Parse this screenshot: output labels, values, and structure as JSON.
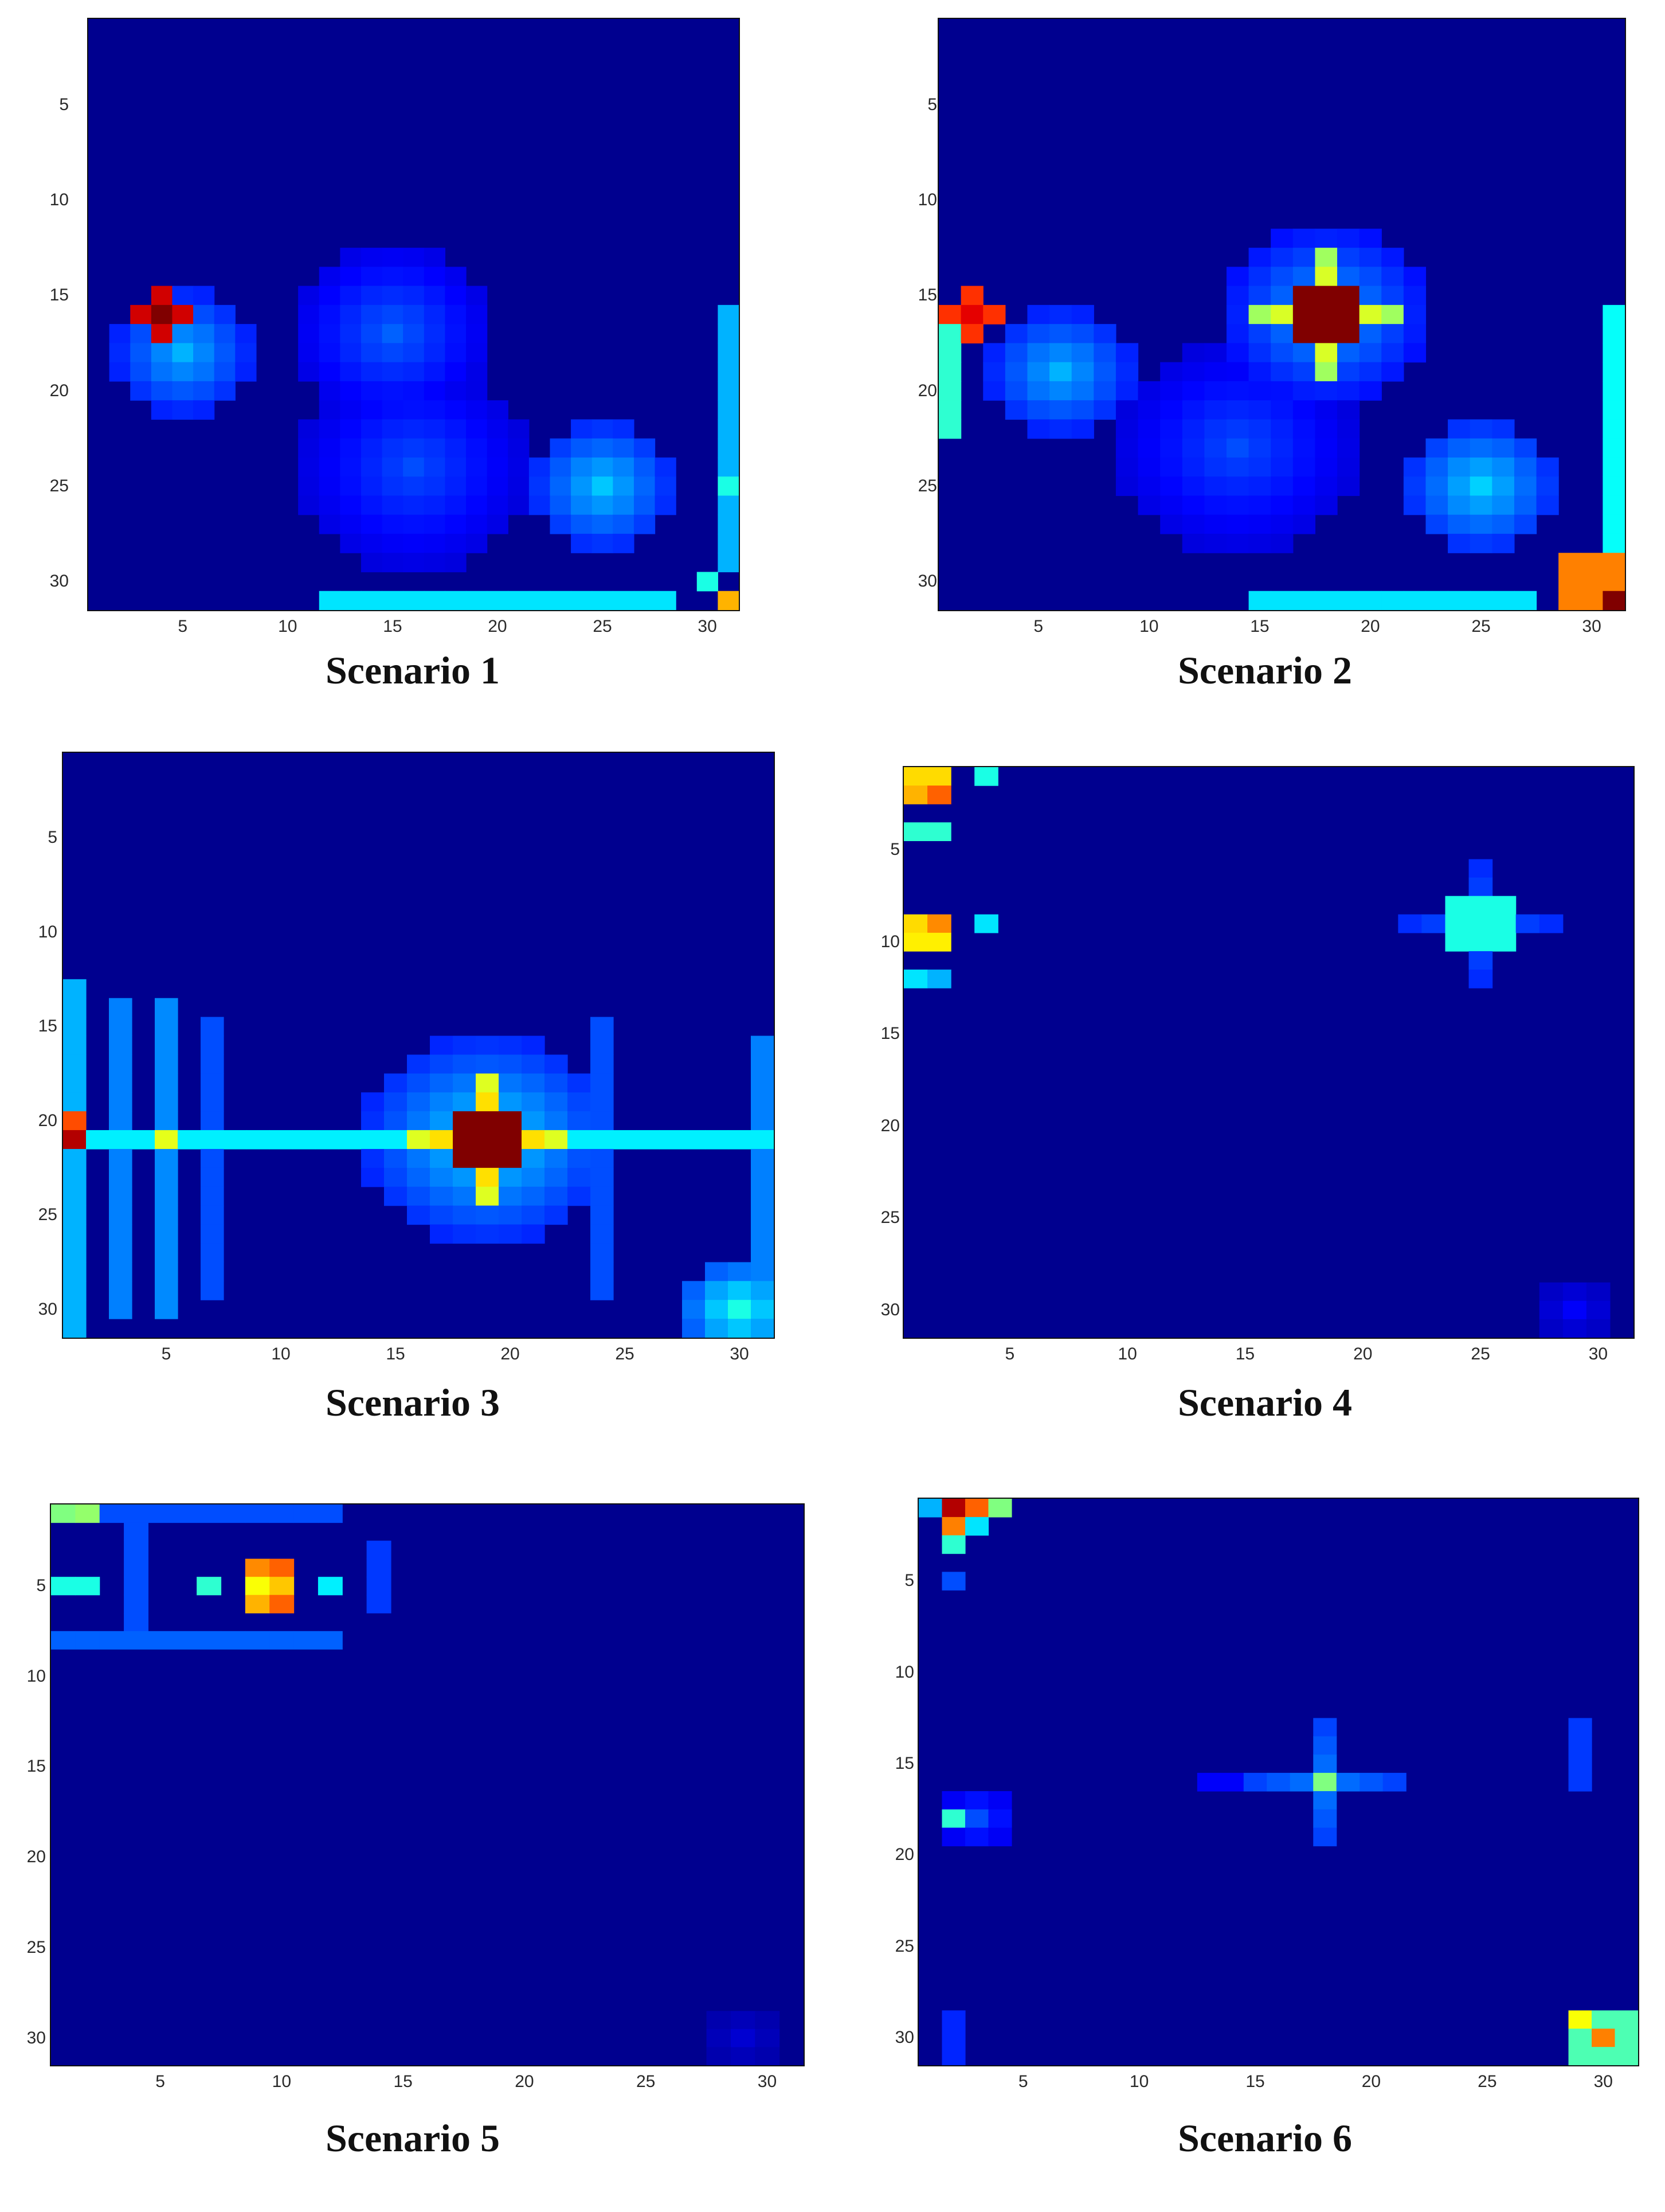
{
  "chart_data": [
    {
      "type": "heatmap",
      "title": "Scenario 1",
      "grid_size": 31,
      "xticks": [
        5,
        10,
        15,
        20,
        25,
        30
      ],
      "yticks": [
        5,
        10,
        15,
        20,
        25,
        30
      ],
      "colormap": "jet",
      "background_value": 0.02,
      "features": [
        {
          "type": "cross",
          "x": 4,
          "y": 16,
          "value": 1.0
        },
        {
          "type": "blob",
          "x": 5,
          "y": 18,
          "radius": 3,
          "value": 0.3
        },
        {
          "type": "blob",
          "x": 15,
          "y": 17,
          "radius": 4,
          "value": 0.22
        },
        {
          "type": "blob",
          "x": 25,
          "y": 25,
          "radius": 3,
          "value": 0.32
        },
        {
          "type": "blob",
          "x": 16,
          "y": 24,
          "radius": 5,
          "value": 0.2
        },
        {
          "type": "row_band",
          "y": 31,
          "x_from": 12,
          "x_to": 28,
          "value": 0.35
        },
        {
          "type": "cell",
          "x": 31,
          "y": 31,
          "value": 0.7
        },
        {
          "type": "cell",
          "x": 31,
          "y": 25,
          "value": 0.4
        },
        {
          "type": "cell",
          "x": 30,
          "y": 30,
          "value": 0.4
        },
        {
          "type": "col_band",
          "x": 31,
          "y_from": 16,
          "y_to": 29,
          "value": 0.3
        }
      ]
    },
    {
      "type": "heatmap",
      "title": "Scenario 2",
      "grid_size": 31,
      "xticks": [
        5,
        10,
        15,
        20,
        25,
        30
      ],
      "yticks": [
        5,
        10,
        15,
        20,
        25,
        30
      ],
      "colormap": "jet",
      "background_value": 0.02,
      "features": [
        {
          "type": "block",
          "x": 18,
          "y": 16,
          "half": 1,
          "value": 1.0
        },
        {
          "type": "cross",
          "x": 18,
          "y": 16,
          "arm": 3,
          "value": 0.7
        },
        {
          "type": "blob",
          "x": 18,
          "y": 16,
          "radius": 4,
          "value": 0.3
        },
        {
          "type": "cross",
          "x": 2,
          "y": 16,
          "value": 0.9
        },
        {
          "type": "blob",
          "x": 6,
          "y": 19,
          "radius": 3,
          "value": 0.3
        },
        {
          "type": "blob",
          "x": 25,
          "y": 25,
          "radius": 3,
          "value": 0.33
        },
        {
          "type": "blob",
          "x": 14,
          "y": 23,
          "radius": 5,
          "value": 0.2
        },
        {
          "type": "block",
          "x": 30,
          "y": 30,
          "half": 1,
          "value": 0.75
        },
        {
          "type": "cell",
          "x": 31,
          "y": 31,
          "value": 1.0
        },
        {
          "type": "col_band",
          "x": 31,
          "y_from": 16,
          "y_to": 28,
          "value": 0.38
        },
        {
          "type": "row_band",
          "y": 31,
          "x_from": 15,
          "x_to": 27,
          "value": 0.35
        },
        {
          "type": "col_band",
          "x": 1,
          "y_from": 17,
          "y_to": 22,
          "value": 0.42
        }
      ]
    },
    {
      "type": "heatmap",
      "title": "Scenario 3",
      "grid_size": 31,
      "xticks": [
        5,
        10,
        15,
        20,
        25,
        30
      ],
      "yticks": [
        5,
        10,
        15,
        20,
        25,
        30
      ],
      "colormap": "jet",
      "background_value": 0.02,
      "features": [
        {
          "type": "block",
          "x": 19,
          "y": 21,
          "half": 1,
          "value": 1.0
        },
        {
          "type": "cross",
          "x": 19,
          "y": 21,
          "arm": 3,
          "value": 0.78
        },
        {
          "type": "blob",
          "x": 19,
          "y": 21,
          "radius": 5,
          "value": 0.35
        },
        {
          "type": "row_band",
          "y": 21,
          "x_from": 1,
          "x_to": 31,
          "value": 0.36
        },
        {
          "type": "cell",
          "x": 1,
          "y": 21,
          "value": 0.95
        },
        {
          "type": "cell",
          "x": 1,
          "y": 20,
          "value": 0.8
        },
        {
          "type": "cell",
          "x": 5,
          "y": 21,
          "value": 0.6
        },
        {
          "type": "col_band",
          "x": 1,
          "y_from": 13,
          "y_to": 31,
          "value": 0.3
        },
        {
          "type": "col_band",
          "x": 3,
          "y_from": 14,
          "y_to": 30,
          "value": 0.25
        },
        {
          "type": "col_band",
          "x": 5,
          "y_from": 14,
          "y_to": 30,
          "value": 0.26
        },
        {
          "type": "col_band",
          "x": 7,
          "y_from": 15,
          "y_to": 29,
          "value": 0.2
        },
        {
          "type": "col_band",
          "x": 24,
          "y_from": 15,
          "y_to": 29,
          "value": 0.2
        },
        {
          "type": "col_band",
          "x": 31,
          "y_from": 16,
          "y_to": 29,
          "value": 0.25
        },
        {
          "type": "blob",
          "x": 30,
          "y": 30,
          "radius": 2,
          "value": 0.4
        }
      ]
    },
    {
      "type": "heatmap",
      "title": "Scenario 4",
      "grid_size": 31,
      "xticks": [
        5,
        10,
        15,
        20,
        25,
        30
      ],
      "yticks": [
        5,
        10,
        15,
        20,
        25,
        30
      ],
      "colormap": "jet",
      "background_value": 0.02,
      "features": [
        {
          "type": "cell",
          "x": 1,
          "y": 1,
          "value": 0.66
        },
        {
          "type": "cell",
          "x": 2,
          "y": 1,
          "value": 0.66
        },
        {
          "type": "cell",
          "x": 1,
          "y": 2,
          "value": 0.7
        },
        {
          "type": "cell",
          "x": 2,
          "y": 2,
          "value": 0.78
        },
        {
          "type": "cell",
          "x": 1,
          "y": 9,
          "value": 0.66
        },
        {
          "type": "cell",
          "x": 2,
          "y": 9,
          "value": 0.74
        },
        {
          "type": "cell",
          "x": 1,
          "y": 10,
          "value": 0.64
        },
        {
          "type": "cell",
          "x": 2,
          "y": 10,
          "value": 0.64
        },
        {
          "type": "cell",
          "x": 4,
          "y": 1,
          "value": 0.4
        },
        {
          "type": "cell",
          "x": 1,
          "y": 4,
          "value": 0.42
        },
        {
          "type": "cell",
          "x": 2,
          "y": 4,
          "value": 0.42
        },
        {
          "type": "cell",
          "x": 4,
          "y": 9,
          "value": 0.35
        },
        {
          "type": "cell",
          "x": 1,
          "y": 12,
          "value": 0.35
        },
        {
          "type": "cell",
          "x": 2,
          "y": 12,
          "value": 0.3
        },
        {
          "type": "block",
          "x": 25,
          "y": 9,
          "half": 1,
          "value": 0.4
        },
        {
          "type": "cross",
          "x": 25,
          "y": 9,
          "arm": 3,
          "value": 0.22
        },
        {
          "type": "blob",
          "x": 29,
          "y": 30,
          "radius": 1,
          "value": 0.12
        }
      ]
    },
    {
      "type": "heatmap",
      "title": "Scenario 5",
      "grid_size": 31,
      "xticks": [
        5,
        10,
        15,
        20,
        25,
        30
      ],
      "yticks": [
        5,
        10,
        15,
        20,
        25,
        30
      ],
      "colormap": "jet",
      "background_value": 0.02,
      "features": [
        {
          "type": "cell",
          "x": 10,
          "y": 4,
          "value": 0.78
        },
        {
          "type": "cell",
          "x": 10,
          "y": 5,
          "value": 0.68
        },
        {
          "type": "cell",
          "x": 10,
          "y": 6,
          "value": 0.78
        },
        {
          "type": "cell",
          "x": 9,
          "y": 4,
          "value": 0.74
        },
        {
          "type": "cell",
          "x": 9,
          "y": 5,
          "value": 0.62
        },
        {
          "type": "cell",
          "x": 9,
          "y": 6,
          "value": 0.7
        },
        {
          "type": "cell",
          "x": 1,
          "y": 1,
          "value": 0.5
        },
        {
          "type": "cell",
          "x": 2,
          "y": 1,
          "value": 0.52
        },
        {
          "type": "cell",
          "x": 1,
          "y": 5,
          "value": 0.4
        },
        {
          "type": "cell",
          "x": 2,
          "y": 5,
          "value": 0.4
        },
        {
          "type": "cell",
          "x": 7,
          "y": 5,
          "value": 0.42
        },
        {
          "type": "cell",
          "x": 12,
          "y": 5,
          "value": 0.36
        },
        {
          "type": "row_band",
          "y": 8,
          "x_from": 1,
          "x_to": 12,
          "value": 0.22
        },
        {
          "type": "row_band",
          "y": 1,
          "x_from": 1,
          "x_to": 12,
          "value": 0.2
        },
        {
          "type": "col_band",
          "x": 4,
          "y_from": 1,
          "y_to": 8,
          "value": 0.2
        },
        {
          "type": "col_band",
          "x": 14,
          "y_from": 3,
          "y_to": 6,
          "value": 0.18
        },
        {
          "type": "blob",
          "x": 29,
          "y": 30,
          "radius": 1,
          "value": 0.08
        }
      ]
    },
    {
      "type": "heatmap",
      "title": "Scenario 6",
      "grid_size": 31,
      "xticks": [
        5,
        10,
        15,
        20,
        25,
        30
      ],
      "yticks": [
        5,
        10,
        15,
        20,
        25,
        30
      ],
      "colormap": "jet",
      "background_value": 0.02,
      "features": [
        {
          "type": "cell",
          "x": 2,
          "y": 1,
          "value": 0.95
        },
        {
          "type": "cell",
          "x": 3,
          "y": 1,
          "value": 0.78
        },
        {
          "type": "cell",
          "x": 4,
          "y": 1,
          "value": 0.5
        },
        {
          "type": "cell",
          "x": 2,
          "y": 2,
          "value": 0.75
        },
        {
          "type": "cell",
          "x": 3,
          "y": 2,
          "value": 0.35
        },
        {
          "type": "cell",
          "x": 2,
          "y": 3,
          "value": 0.42
        },
        {
          "type": "cell",
          "x": 1,
          "y": 1,
          "value": 0.3
        },
        {
          "type": "cell",
          "x": 2,
          "y": 5,
          "value": 0.2
        },
        {
          "type": "cell",
          "x": 2,
          "y": 18,
          "value": 0.42
        },
        {
          "type": "blob",
          "x": 3,
          "y": 18,
          "radius": 1,
          "value": 0.2
        },
        {
          "type": "cell",
          "x": 18,
          "y": 16,
          "value": 0.5
        },
        {
          "type": "cross",
          "x": 18,
          "y": 16,
          "arm": 3,
          "value": 0.25
        },
        {
          "type": "row_band",
          "y": 16,
          "x_from": 13,
          "x_to": 21,
          "value": 0.12
        },
        {
          "type": "block",
          "x": 30,
          "y": 30,
          "half": 1,
          "value": 0.45
        },
        {
          "type": "cell",
          "x": 30,
          "y": 30,
          "value": 0.75
        },
        {
          "type": "cell",
          "x": 29,
          "y": 29,
          "value": 0.62
        },
        {
          "type": "col_band",
          "x": 29,
          "y_from": 13,
          "y_to": 16,
          "value": 0.18
        },
        {
          "type": "col_band",
          "x": 2,
          "y_from": 29,
          "y_to": 31,
          "value": 0.16
        }
      ]
    }
  ]
}
